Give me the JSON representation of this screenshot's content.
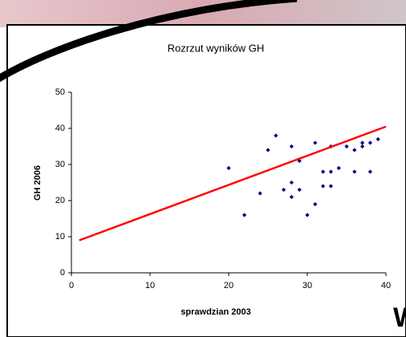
{
  "slide_fragment": "W",
  "chart_data": {
    "type": "scatter",
    "title": "Rozrzut wyników GH",
    "x_label": "sprawdzian 2003",
    "y_label": "GH 2006",
    "xlim": [
      0,
      40
    ],
    "ylim": [
      0,
      50
    ],
    "xticks": [
      0,
      10,
      20,
      30,
      40
    ],
    "yticks": [
      0,
      10,
      20,
      30,
      40,
      50
    ],
    "series": [
      {
        "type": "scatter",
        "color": "#000080",
        "x": [
          20,
          22,
          24,
          25,
          26,
          27,
          28,
          28,
          28,
          29,
          29,
          30,
          31,
          31,
          32,
          32,
          33,
          33,
          33,
          34,
          35,
          36,
          36,
          37,
          37,
          38,
          38,
          39
        ],
        "values": [
          29,
          16,
          22,
          34,
          38,
          23,
          35,
          25,
          21,
          31,
          23,
          16,
          36,
          19,
          28,
          24,
          35,
          28,
          24,
          29,
          35,
          34,
          28,
          36,
          35,
          36,
          28,
          37
        ]
      },
      {
        "type": "line",
        "color": "#ff0000",
        "x": [
          1,
          40
        ],
        "values": [
          9,
          40.5
        ]
      }
    ]
  }
}
